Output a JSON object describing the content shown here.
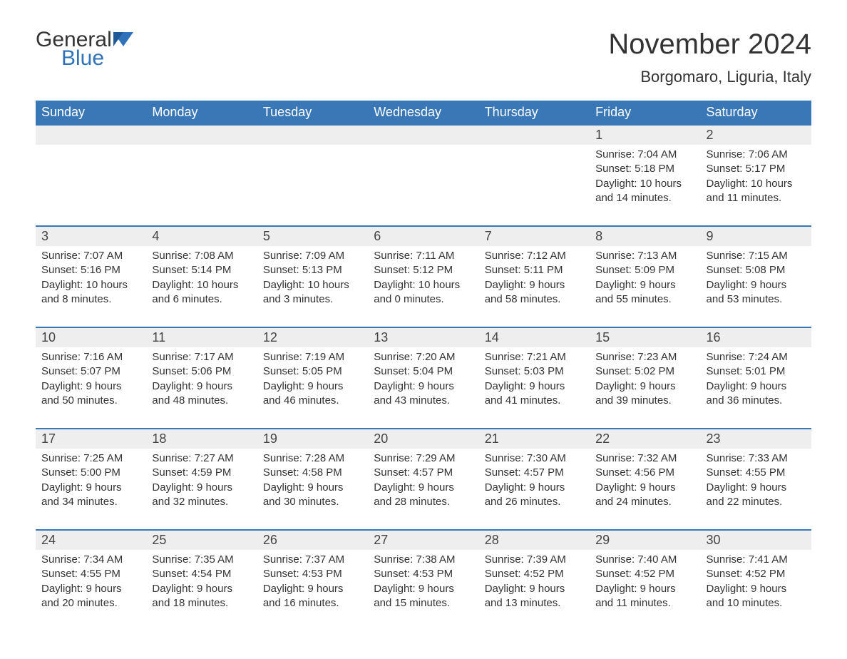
{
  "brand": {
    "word1": "General",
    "word2": "Blue"
  },
  "title": "November 2024",
  "location": "Borgomaro, Liguria, Italy",
  "colors": {
    "header_bg": "#3a77b6",
    "header_text": "#ffffff",
    "row_accent": "#3a77b6",
    "daynum_bg": "#eeeeee",
    "body_text": "#333333",
    "brand_blue": "#2f72b9"
  },
  "weekdays": [
    "Sunday",
    "Monday",
    "Tuesday",
    "Wednesday",
    "Thursday",
    "Friday",
    "Saturday"
  ],
  "weeks": [
    [
      null,
      null,
      null,
      null,
      null,
      {
        "n": "1",
        "sr": "Sunrise: 7:04 AM",
        "ss": "Sunset: 5:18 PM",
        "d1": "Daylight: 10 hours",
        "d2": "and 14 minutes."
      },
      {
        "n": "2",
        "sr": "Sunrise: 7:06 AM",
        "ss": "Sunset: 5:17 PM",
        "d1": "Daylight: 10 hours",
        "d2": "and 11 minutes."
      }
    ],
    [
      {
        "n": "3",
        "sr": "Sunrise: 7:07 AM",
        "ss": "Sunset: 5:16 PM",
        "d1": "Daylight: 10 hours",
        "d2": "and 8 minutes."
      },
      {
        "n": "4",
        "sr": "Sunrise: 7:08 AM",
        "ss": "Sunset: 5:14 PM",
        "d1": "Daylight: 10 hours",
        "d2": "and 6 minutes."
      },
      {
        "n": "5",
        "sr": "Sunrise: 7:09 AM",
        "ss": "Sunset: 5:13 PM",
        "d1": "Daylight: 10 hours",
        "d2": "and 3 minutes."
      },
      {
        "n": "6",
        "sr": "Sunrise: 7:11 AM",
        "ss": "Sunset: 5:12 PM",
        "d1": "Daylight: 10 hours",
        "d2": "and 0 minutes."
      },
      {
        "n": "7",
        "sr": "Sunrise: 7:12 AM",
        "ss": "Sunset: 5:11 PM",
        "d1": "Daylight: 9 hours",
        "d2": "and 58 minutes."
      },
      {
        "n": "8",
        "sr": "Sunrise: 7:13 AM",
        "ss": "Sunset: 5:09 PM",
        "d1": "Daylight: 9 hours",
        "d2": "and 55 minutes."
      },
      {
        "n": "9",
        "sr": "Sunrise: 7:15 AM",
        "ss": "Sunset: 5:08 PM",
        "d1": "Daylight: 9 hours",
        "d2": "and 53 minutes."
      }
    ],
    [
      {
        "n": "10",
        "sr": "Sunrise: 7:16 AM",
        "ss": "Sunset: 5:07 PM",
        "d1": "Daylight: 9 hours",
        "d2": "and 50 minutes."
      },
      {
        "n": "11",
        "sr": "Sunrise: 7:17 AM",
        "ss": "Sunset: 5:06 PM",
        "d1": "Daylight: 9 hours",
        "d2": "and 48 minutes."
      },
      {
        "n": "12",
        "sr": "Sunrise: 7:19 AM",
        "ss": "Sunset: 5:05 PM",
        "d1": "Daylight: 9 hours",
        "d2": "and 46 minutes."
      },
      {
        "n": "13",
        "sr": "Sunrise: 7:20 AM",
        "ss": "Sunset: 5:04 PM",
        "d1": "Daylight: 9 hours",
        "d2": "and 43 minutes."
      },
      {
        "n": "14",
        "sr": "Sunrise: 7:21 AM",
        "ss": "Sunset: 5:03 PM",
        "d1": "Daylight: 9 hours",
        "d2": "and 41 minutes."
      },
      {
        "n": "15",
        "sr": "Sunrise: 7:23 AM",
        "ss": "Sunset: 5:02 PM",
        "d1": "Daylight: 9 hours",
        "d2": "and 39 minutes."
      },
      {
        "n": "16",
        "sr": "Sunrise: 7:24 AM",
        "ss": "Sunset: 5:01 PM",
        "d1": "Daylight: 9 hours",
        "d2": "and 36 minutes."
      }
    ],
    [
      {
        "n": "17",
        "sr": "Sunrise: 7:25 AM",
        "ss": "Sunset: 5:00 PM",
        "d1": "Daylight: 9 hours",
        "d2": "and 34 minutes."
      },
      {
        "n": "18",
        "sr": "Sunrise: 7:27 AM",
        "ss": "Sunset: 4:59 PM",
        "d1": "Daylight: 9 hours",
        "d2": "and 32 minutes."
      },
      {
        "n": "19",
        "sr": "Sunrise: 7:28 AM",
        "ss": "Sunset: 4:58 PM",
        "d1": "Daylight: 9 hours",
        "d2": "and 30 minutes."
      },
      {
        "n": "20",
        "sr": "Sunrise: 7:29 AM",
        "ss": "Sunset: 4:57 PM",
        "d1": "Daylight: 9 hours",
        "d2": "and 28 minutes."
      },
      {
        "n": "21",
        "sr": "Sunrise: 7:30 AM",
        "ss": "Sunset: 4:57 PM",
        "d1": "Daylight: 9 hours",
        "d2": "and 26 minutes."
      },
      {
        "n": "22",
        "sr": "Sunrise: 7:32 AM",
        "ss": "Sunset: 4:56 PM",
        "d1": "Daylight: 9 hours",
        "d2": "and 24 minutes."
      },
      {
        "n": "23",
        "sr": "Sunrise: 7:33 AM",
        "ss": "Sunset: 4:55 PM",
        "d1": "Daylight: 9 hours",
        "d2": "and 22 minutes."
      }
    ],
    [
      {
        "n": "24",
        "sr": "Sunrise: 7:34 AM",
        "ss": "Sunset: 4:55 PM",
        "d1": "Daylight: 9 hours",
        "d2": "and 20 minutes."
      },
      {
        "n": "25",
        "sr": "Sunrise: 7:35 AM",
        "ss": "Sunset: 4:54 PM",
        "d1": "Daylight: 9 hours",
        "d2": "and 18 minutes."
      },
      {
        "n": "26",
        "sr": "Sunrise: 7:37 AM",
        "ss": "Sunset: 4:53 PM",
        "d1": "Daylight: 9 hours",
        "d2": "and 16 minutes."
      },
      {
        "n": "27",
        "sr": "Sunrise: 7:38 AM",
        "ss": "Sunset: 4:53 PM",
        "d1": "Daylight: 9 hours",
        "d2": "and 15 minutes."
      },
      {
        "n": "28",
        "sr": "Sunrise: 7:39 AM",
        "ss": "Sunset: 4:52 PM",
        "d1": "Daylight: 9 hours",
        "d2": "and 13 minutes."
      },
      {
        "n": "29",
        "sr": "Sunrise: 7:40 AM",
        "ss": "Sunset: 4:52 PM",
        "d1": "Daylight: 9 hours",
        "d2": "and 11 minutes."
      },
      {
        "n": "30",
        "sr": "Sunrise: 7:41 AM",
        "ss": "Sunset: 4:52 PM",
        "d1": "Daylight: 9 hours",
        "d2": "and 10 minutes."
      }
    ]
  ]
}
